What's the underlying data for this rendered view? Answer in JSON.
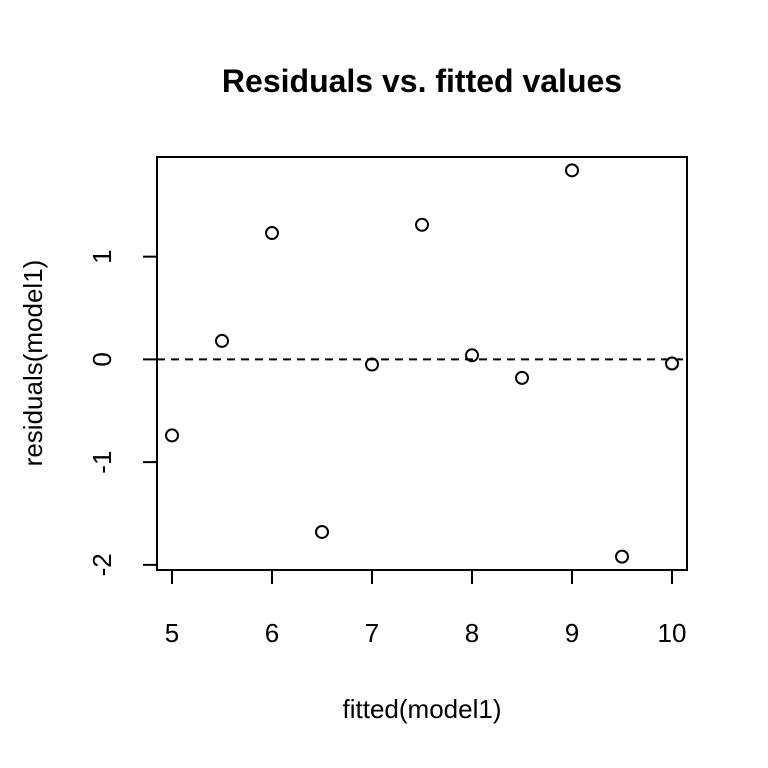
{
  "chart_data": {
    "type": "scatter",
    "title": "Residuals vs. fitted values",
    "xlabel": "fitted(model1)",
    "ylabel": "residuals(model1)",
    "xlim": [
      4.85,
      10.15
    ],
    "ylim": [
      -2.05,
      1.97
    ],
    "xticks": [
      5,
      6,
      7,
      8,
      9,
      10
    ],
    "yticks": [
      -2,
      -1,
      0,
      1
    ],
    "reference_line": {
      "y": 0,
      "style": "dashed"
    },
    "grid": false,
    "legend": "none",
    "series": [
      {
        "x": [
          5,
          5.5,
          6,
          6.5,
          7,
          7.5,
          8,
          8.5,
          9,
          9.5,
          10
        ],
        "y": [
          -0.74,
          0.18,
          1.23,
          -1.68,
          -0.05,
          1.31,
          0.04,
          -0.18,
          1.84,
          -1.92,
          -0.04
        ]
      }
    ],
    "colors": {
      "points": "#000000",
      "axes": "#000000",
      "background": "#ffffff"
    }
  }
}
